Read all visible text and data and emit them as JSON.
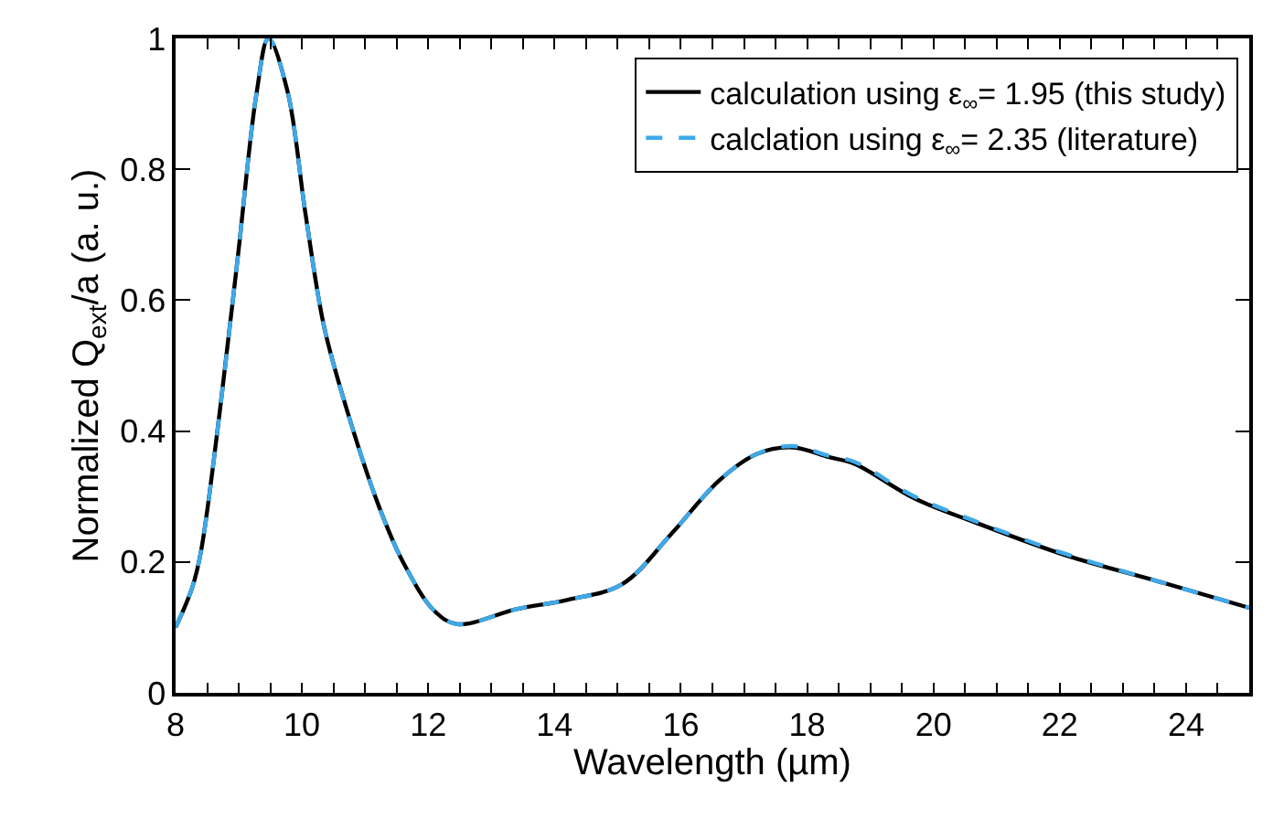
{
  "chart_data": {
    "type": "line",
    "xlabel": "Wavelength (µm)",
    "ylabel": "Normalized Q$_{ext}$/a (a. u.)",
    "x": [
      8,
      8.26,
      8.4,
      8.7,
      8.99,
      9.28,
      9.47,
      9.77,
      10.06,
      10.35,
      10.72,
      11.2,
      11.6,
      12.1,
      12.46,
      13.4,
      14.2,
      15.07,
      15.85,
      16.6,
      17.2,
      17.77,
      18.35,
      18.75,
      19.7,
      20.67,
      22.1,
      23.57,
      25
    ],
    "series": [
      {
        "name": "calculation using ε$_{∞}$= 1.95 (this study)",
        "color": "#000000",
        "line_style": "solid",
        "values": [
          0.1,
          0.16,
          0.215,
          0.43,
          0.67,
          0.915,
          1.0,
          0.92,
          0.73,
          0.56,
          0.43,
          0.29,
          0.2,
          0.125,
          0.105,
          0.128,
          0.142,
          0.166,
          0.243,
          0.324,
          0.365,
          0.375,
          0.36,
          0.35,
          0.297,
          0.26,
          0.21,
          0.17,
          0.13
        ]
      },
      {
        "name": "calclation using ε$_{∞}$= 2.35 (literature)",
        "color": "#3fa9e8",
        "line_style": "dashed",
        "values": [
          0.1,
          0.16,
          0.215,
          0.43,
          0.67,
          0.915,
          1.0,
          0.92,
          0.73,
          0.56,
          0.43,
          0.29,
          0.2,
          0.125,
          0.105,
          0.128,
          0.142,
          0.166,
          0.243,
          0.324,
          0.365,
          0.377,
          0.362,
          0.353,
          0.3,
          0.262,
          0.212,
          0.17,
          0.13
        ]
      }
    ],
    "xlim": [
      8,
      25
    ],
    "xticks": [
      8,
      {
        "value": 8.5,
        "label": null
      },
      {
        "value": 9,
        "label": null
      },
      {
        "value": 9.5,
        "label": null
      },
      10,
      {
        "value": 10.5,
        "label": null
      },
      {
        "value": 11,
        "label": null
      },
      {
        "value": 11.5,
        "label": null
      },
      12,
      {
        "value": 12.5,
        "label": null
      },
      {
        "value": 13,
        "label": null
      },
      {
        "value": 13.5,
        "label": null
      },
      14,
      {
        "value": 14.5,
        "label": null
      },
      {
        "value": 15,
        "label": null
      },
      {
        "value": 15.5,
        "label": null
      },
      16,
      {
        "value": 16.5,
        "label": null
      },
      {
        "value": 17,
        "label": null
      },
      {
        "value": 17.5,
        "label": null
      },
      18,
      {
        "value": 18.5,
        "label": null
      },
      {
        "value": 19,
        "label": null
      },
      {
        "value": 19.5,
        "label": null
      },
      20,
      {
        "value": 20.5,
        "label": null
      },
      {
        "value": 21,
        "label": null
      },
      {
        "value": 21.5,
        "label": null
      },
      22,
      {
        "value": 22.5,
        "label": null
      },
      {
        "value": 23,
        "label": null
      },
      {
        "value": 23.5,
        "label": null
      },
      24,
      {
        "value": 24.5,
        "label": null
      }
    ],
    "ylim": [
      0,
      1
    ],
    "yticks": [
      0,
      0.2,
      0.4,
      0.6,
      0.8,
      1
    ],
    "legend": "top right",
    "marker": "none"
  }
}
